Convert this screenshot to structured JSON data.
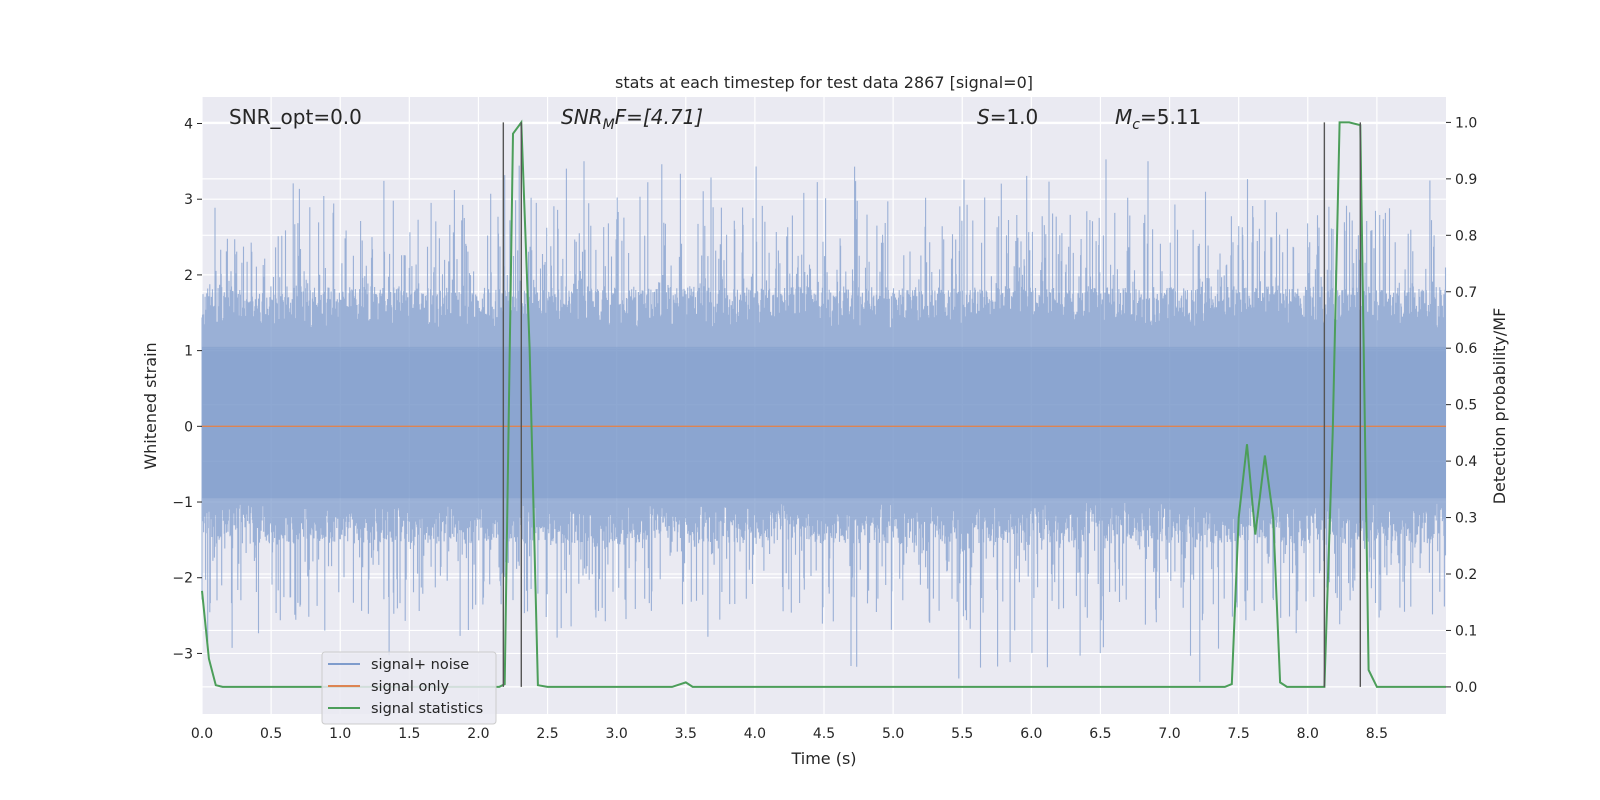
{
  "chart_data": {
    "type": "line",
    "title": "stats at each timestep for test data 2867 [signal=0]",
    "xlabel": "Time (s)",
    "ylabel_left": "Whitened strain",
    "ylabel_right": "Detection probability/MF",
    "xlim": [
      0,
      9.0
    ],
    "ylim_left": [
      -3.8,
      4.35
    ],
    "ylim_right": [
      -0.048,
      1.045
    ],
    "grid": true,
    "x_ticks": [
      "0.0",
      "0.5",
      "1.0",
      "1.5",
      "2.0",
      "2.5",
      "3.0",
      "3.5",
      "4.0",
      "4.5",
      "5.0",
      "5.5",
      "6.0",
      "6.5",
      "7.0",
      "7.5",
      "8.0",
      "8.5"
    ],
    "y_ticks_left": [
      "4",
      "3",
      "2",
      "1",
      "0",
      "−1",
      "−2",
      "−3"
    ],
    "y_ticks_right": [
      "1.0",
      "0.9",
      "0.8",
      "0.7",
      "0.6",
      "0.5",
      "0.4",
      "0.3",
      "0.2",
      "0.1",
      "0.0"
    ],
    "annotations": {
      "snr_opt": "SNR_opt=0.0",
      "snr_mf_main": "SNR",
      "snr_mf_sub": "M",
      "snr_mf_rest": "F=[4.71]",
      "s_main": "S",
      "s_rest": "=1.0",
      "mc_main": "M",
      "mc_sub": "c",
      "mc_rest": "=5.11"
    },
    "vertical_lines_x": [
      2.18,
      2.31,
      8.12,
      8.38
    ],
    "legend_placement": "lower-left",
    "series": [
      {
        "name": "signal+ noise",
        "axis": "left",
        "color": "#7f9ccc",
        "kind": "dense noise band",
        "typical_range": [
          -1.2,
          1.75
        ],
        "peak_range": [
          -3.4,
          3.6
        ]
      },
      {
        "name": "signal only",
        "axis": "left",
        "color": "#dd8452",
        "x": [
          0.0,
          9.0
        ],
        "y": [
          0.0,
          0.0
        ]
      },
      {
        "name": "signal statistics",
        "axis": "right",
        "color": "#4c9e5a",
        "x": [
          0.0,
          0.05,
          0.1,
          0.15,
          2.15,
          2.19,
          2.25,
          2.31,
          2.37,
          2.43,
          2.5,
          3.4,
          3.5,
          3.55,
          7.4,
          7.45,
          7.5,
          7.56,
          7.62,
          7.69,
          7.75,
          7.8,
          7.85,
          8.12,
          8.18,
          8.23,
          8.3,
          8.38,
          8.44,
          8.5,
          9.0
        ],
        "y": [
          0.17,
          0.05,
          0.003,
          0.0,
          0.0,
          0.005,
          0.98,
          1.0,
          0.6,
          0.003,
          0.0,
          0.0,
          0.008,
          0.0,
          0.0,
          0.005,
          0.3,
          0.43,
          0.27,
          0.41,
          0.3,
          0.008,
          0.0,
          0.0,
          0.45,
          1.0,
          1.0,
          0.995,
          0.03,
          0.0,
          0.0
        ]
      }
    ]
  }
}
